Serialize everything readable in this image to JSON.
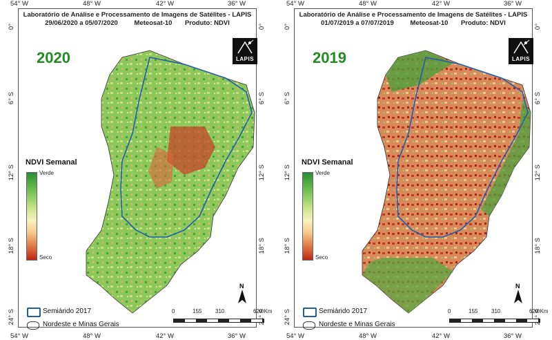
{
  "panels": [
    {
      "header_line1": "Laboratório de Análise e Processamento de Imagens de Satélites - LAPIS",
      "date_range": "29/06/2020  a  05/07/2020",
      "satellite": "Meteosat-10",
      "product": "Produto: NDVI",
      "year": "2020",
      "logo": "LAPIS"
    },
    {
      "header_line1": "Laboratório de Análise e Processamento de Imagens de Satélites - LAPIS",
      "date_range": "01/07/2019  a  07/07/2019",
      "satellite": "Meteosat-10",
      "product": "Produto: NDVI",
      "year": "2019",
      "logo": "LAPIS"
    }
  ],
  "axes": {
    "lon_ticks": [
      "54° W",
      "48° W",
      "42° W",
      "36° W"
    ],
    "lat_ticks": [
      "0°",
      "6° S",
      "12° S",
      "18° S",
      "24° S"
    ]
  },
  "legend": {
    "title": "NDVI Semanal",
    "high_label": "Verde",
    "low_label": "Seco",
    "semiarid_label": "Semiárido 2017",
    "region_label": "Nordeste e Minas Gerais",
    "colors": {
      "high": "#2e8b3a",
      "mid": "#f8f2c2",
      "low": "#c0261b",
      "semiarid_outline": "#1f5fb5"
    }
  },
  "scale_bar": {
    "ticks": [
      "0",
      "155",
      "310",
      "620 Km"
    ]
  },
  "north_arrow": {
    "label": "N",
    "icon": "north-arrow-icon"
  }
}
